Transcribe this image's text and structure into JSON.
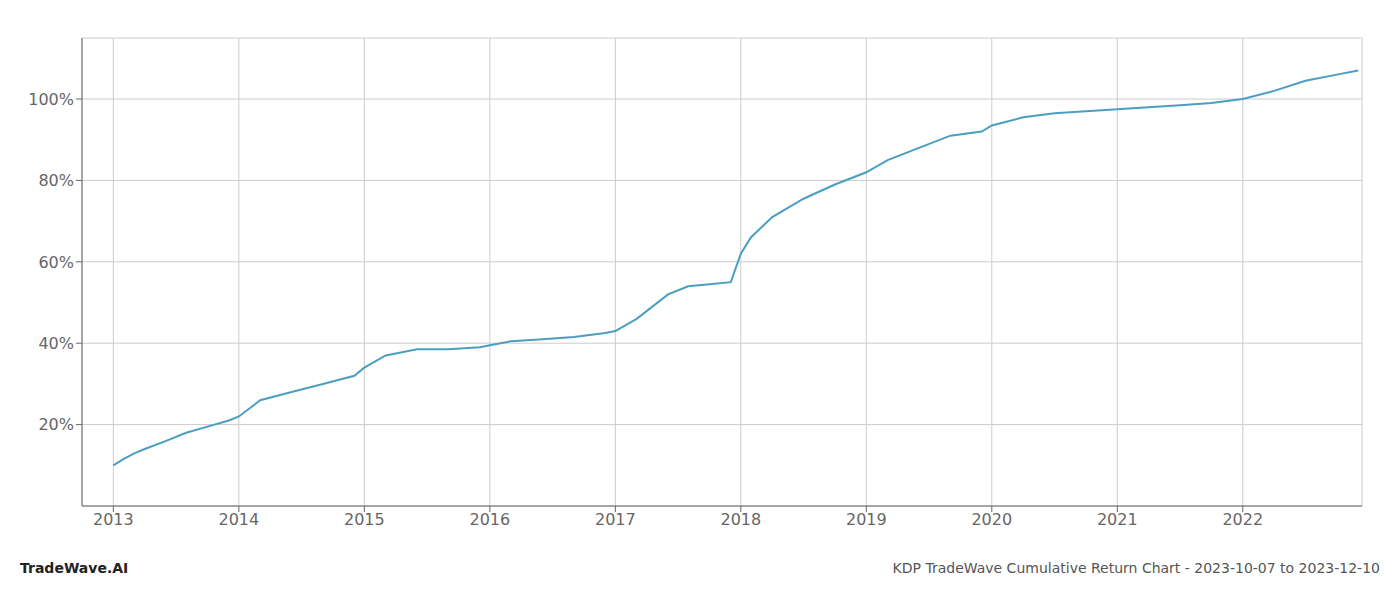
{
  "chart_data": {
    "type": "line",
    "title": "KDP TradeWave Cumulative Return Chart - 2023-10-07 to 2023-12-10",
    "annotations": [
      "TradeWave.AI"
    ],
    "x": [
      2013.0,
      2013.08,
      2013.17,
      2013.25,
      2013.42,
      2013.58,
      2013.75,
      2013.92,
      2014.0,
      2014.17,
      2014.42,
      2014.67,
      2014.92,
      2015.0,
      2015.17,
      2015.42,
      2015.67,
      2015.92,
      2016.0,
      2016.17,
      2016.42,
      2016.67,
      2016.92,
      2017.0,
      2017.17,
      2017.42,
      2017.58,
      2017.75,
      2017.92,
      2018.0,
      2018.08,
      2018.25,
      2018.5,
      2018.75,
      2019.0,
      2019.17,
      2019.42,
      2019.67,
      2019.92,
      2020.0,
      2020.25,
      2020.5,
      2020.75,
      2021.0,
      2021.25,
      2021.5,
      2021.75,
      2022.0,
      2022.25,
      2022.5,
      2022.75,
      2022.92
    ],
    "values": [
      10,
      11.5,
      13,
      14,
      16,
      18,
      19.5,
      21,
      22,
      26,
      28,
      30,
      32,
      34,
      37,
      38.5,
      38.5,
      39,
      39.5,
      40.5,
      41,
      41.5,
      42.5,
      43,
      46,
      52,
      54,
      54.5,
      55,
      62,
      66,
      71,
      75.5,
      79,
      82,
      85,
      88,
      91,
      92,
      93.5,
      95.5,
      96.5,
      97,
      97.5,
      98,
      98.5,
      99,
      100,
      102,
      104.5,
      106,
      107
    ],
    "color": "#4a9fc0",
    "xlim": [
      2012.75,
      2022.95
    ],
    "ylim": [
      0,
      115
    ],
    "xticks": [
      2013,
      2014,
      2015,
      2016,
      2017,
      2018,
      2019,
      2020,
      2021,
      2022
    ],
    "yticks": [
      {
        "value": 20,
        "label": "20%"
      },
      {
        "value": 40,
        "label": "40%"
      },
      {
        "value": 60,
        "label": "60%"
      },
      {
        "value": 80,
        "label": "80%"
      },
      {
        "value": 100,
        "label": "100%"
      }
    ],
    "grid": true
  }
}
